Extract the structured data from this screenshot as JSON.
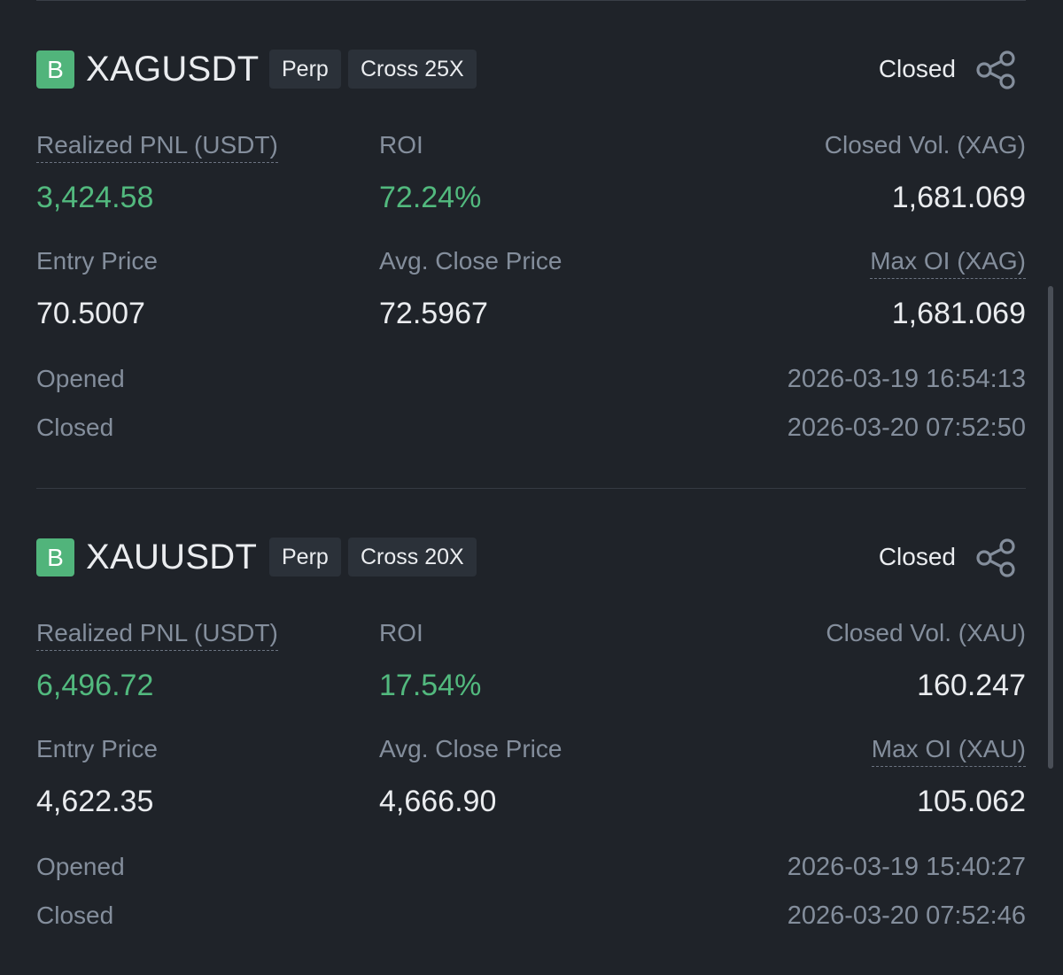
{
  "positions": [
    {
      "side_badge": "B",
      "symbol": "XAGUSDT",
      "contract_type": "Perp",
      "margin_mode": "Cross 25X",
      "status": "Closed",
      "realized_pnl_label": "Realized PNL (USDT)",
      "realized_pnl_value": "3,424.58",
      "roi_label": "ROI",
      "roi_value": "72.24%",
      "closed_vol_label": "Closed Vol. (XAG)",
      "closed_vol_value": "1,681.069",
      "entry_price_label": "Entry Price",
      "entry_price_value": "70.5007",
      "avg_close_label": "Avg. Close Price",
      "avg_close_value": "72.5967",
      "max_oi_label": "Max OI (XAG)",
      "max_oi_value": "1,681.069",
      "opened_label": "Opened",
      "opened_time": "2026-03-19 16:54:13",
      "closed_label": "Closed",
      "closed_time": "2026-03-20 07:52:50"
    },
    {
      "side_badge": "B",
      "symbol": "XAUUSDT",
      "contract_type": "Perp",
      "margin_mode": "Cross 20X",
      "status": "Closed",
      "realized_pnl_label": "Realized PNL (USDT)",
      "realized_pnl_value": "6,496.72",
      "roi_label": "ROI",
      "roi_value": "17.54%",
      "closed_vol_label": "Closed Vol. (XAU)",
      "closed_vol_value": "160.247",
      "entry_price_label": "Entry Price",
      "entry_price_value": "4,622.35",
      "avg_close_label": "Avg. Close Price",
      "avg_close_value": "4,666.90",
      "max_oi_label": "Max OI (XAU)",
      "max_oi_value": "105.062",
      "opened_label": "Opened",
      "opened_time": "2026-03-19 15:40:27",
      "closed_label": "Closed",
      "closed_time": "2026-03-20 07:52:46"
    }
  ],
  "icons": {
    "share": "share-icon"
  },
  "colors": {
    "background": "#1f2329",
    "profit_green": "#52b97e",
    "buy_badge": "#51b47b",
    "muted_text": "#848e9c",
    "primary_text": "#eaecef"
  }
}
